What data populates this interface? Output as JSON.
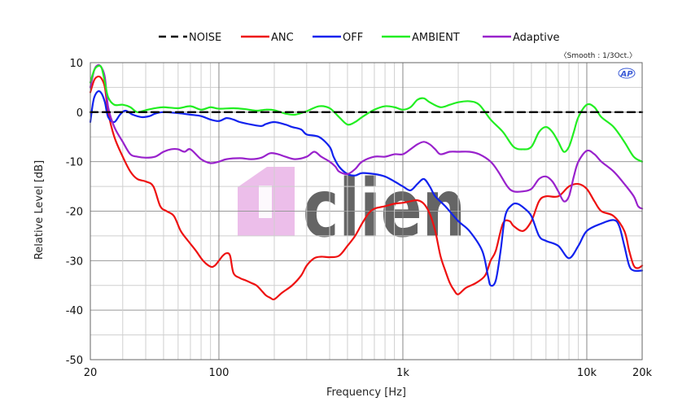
{
  "chart_data": {
    "type": "line",
    "title": "",
    "xlabel": "Frequency [Hz]",
    "ylabel": "Relative Level [dB]",
    "x_scale": "log",
    "xlim": [
      20,
      20000
    ],
    "ylim": [
      -50,
      10
    ],
    "x_ticks": [
      {
        "value": 20,
        "label": "20"
      },
      {
        "value": 100,
        "label": "100"
      },
      {
        "value": 1000,
        "label": "1k"
      },
      {
        "value": 10000,
        "label": "10k"
      },
      {
        "value": 20000,
        "label": "20k"
      }
    ],
    "y_ticks": [
      {
        "value": 10,
        "label": "10"
      },
      {
        "value": 0,
        "label": "0"
      },
      {
        "value": -10,
        "label": "-10"
      },
      {
        "value": -20,
        "label": "-20"
      },
      {
        "value": -30,
        "label": "-30"
      },
      {
        "value": -40,
        "label": "-40"
      },
      {
        "value": -50,
        "label": "-50"
      }
    ],
    "grid": true,
    "legend_position": "top-center",
    "annotation": "〈Smooth : 1/3Oct.〉",
    "logo_text": "AP",
    "watermark_text": "clien",
    "series": [
      {
        "name": "NOISE",
        "color": "#000000",
        "dashed": true,
        "points": [
          [
            20,
            0
          ],
          [
            20000,
            0
          ]
        ]
      },
      {
        "name": "ANC",
        "color": "#ee1111",
        "dashed": false,
        "points": [
          [
            20,
            4
          ],
          [
            21,
            6.5
          ],
          [
            22,
            7.2
          ],
          [
            23,
            6.8
          ],
          [
            24,
            5
          ],
          [
            25,
            0
          ],
          [
            27,
            -5
          ],
          [
            30,
            -9
          ],
          [
            33,
            -12
          ],
          [
            36,
            -13.5
          ],
          [
            40,
            -14
          ],
          [
            44,
            -15
          ],
          [
            48,
            -19
          ],
          [
            52,
            -20
          ],
          [
            57,
            -21
          ],
          [
            62,
            -24
          ],
          [
            68,
            -26
          ],
          [
            75,
            -28
          ],
          [
            82,
            -30
          ],
          [
            90,
            -31.2
          ],
          [
            95,
            -31
          ],
          [
            100,
            -30
          ],
          [
            105,
            -29
          ],
          [
            110,
            -28.5
          ],
          [
            115,
            -29
          ],
          [
            120,
            -32.5
          ],
          [
            130,
            -33.5
          ],
          [
            140,
            -34
          ],
          [
            150,
            -34.5
          ],
          [
            160,
            -35
          ],
          [
            170,
            -36
          ],
          [
            180,
            -37
          ],
          [
            190,
            -37.5
          ],
          [
            200,
            -37.8
          ],
          [
            220,
            -36.5
          ],
          [
            250,
            -35
          ],
          [
            280,
            -33
          ],
          [
            300,
            -31
          ],
          [
            330,
            -29.5
          ],
          [
            360,
            -29.2
          ],
          [
            400,
            -29.3
          ],
          [
            450,
            -29
          ],
          [
            500,
            -27
          ],
          [
            550,
            -25
          ],
          [
            600,
            -22.5
          ],
          [
            650,
            -20.5
          ],
          [
            700,
            -19.5
          ],
          [
            800,
            -19
          ],
          [
            900,
            -18.5
          ],
          [
            1000,
            -18.3
          ],
          [
            1100,
            -18
          ],
          [
            1200,
            -17.8
          ],
          [
            1300,
            -18.5
          ],
          [
            1400,
            -20.5
          ],
          [
            1500,
            -24
          ],
          [
            1600,
            -29
          ],
          [
            1700,
            -32
          ],
          [
            1800,
            -34.5
          ],
          [
            1900,
            -36
          ],
          [
            2000,
            -36.8
          ],
          [
            2200,
            -35.5
          ],
          [
            2500,
            -34.5
          ],
          [
            2800,
            -33
          ],
          [
            3000,
            -30
          ],
          [
            3200,
            -28
          ],
          [
            3500,
            -22.5
          ],
          [
            3800,
            -22
          ],
          [
            4000,
            -23
          ],
          [
            4500,
            -24
          ],
          [
            5000,
            -22
          ],
          [
            5500,
            -18
          ],
          [
            6000,
            -17
          ],
          [
            7000,
            -17
          ],
          [
            8000,
            -15
          ],
          [
            9000,
            -14.5
          ],
          [
            10000,
            -15.5
          ],
          [
            11000,
            -18
          ],
          [
            12000,
            -20
          ],
          [
            14000,
            -21
          ],
          [
            16000,
            -24
          ],
          [
            17000,
            -28
          ],
          [
            18000,
            -31
          ],
          [
            19000,
            -31.5
          ],
          [
            20000,
            -31
          ]
        ]
      },
      {
        "name": "OFF",
        "color": "#1122ee",
        "dashed": false,
        "points": [
          [
            20,
            -2
          ],
          [
            20.5,
            1
          ],
          [
            21,
            3
          ],
          [
            22,
            4.2
          ],
          [
            23,
            3.8
          ],
          [
            24,
            2
          ],
          [
            25,
            -1
          ],
          [
            27,
            -2
          ],
          [
            29,
            -0.5
          ],
          [
            31,
            0.3
          ],
          [
            34,
            -0.5
          ],
          [
            38,
            -1
          ],
          [
            42,
            -0.8
          ],
          [
            45,
            -0.3
          ],
          [
            50,
            0
          ],
          [
            60,
            -0.2
          ],
          [
            70,
            -0.5
          ],
          [
            80,
            -0.8
          ],
          [
            90,
            -1.5
          ],
          [
            100,
            -1.8
          ],
          [
            110,
            -1.2
          ],
          [
            120,
            -1.5
          ],
          [
            130,
            -2
          ],
          [
            150,
            -2.5
          ],
          [
            170,
            -2.8
          ],
          [
            180,
            -2.4
          ],
          [
            200,
            -2
          ],
          [
            230,
            -2.5
          ],
          [
            250,
            -3
          ],
          [
            280,
            -3.5
          ],
          [
            300,
            -4.5
          ],
          [
            350,
            -5
          ],
          [
            400,
            -7
          ],
          [
            420,
            -9
          ],
          [
            450,
            -11
          ],
          [
            500,
            -12.5
          ],
          [
            550,
            -12.8
          ],
          [
            600,
            -12.3
          ],
          [
            700,
            -12.5
          ],
          [
            800,
            -13
          ],
          [
            900,
            -14
          ],
          [
            1000,
            -15
          ],
          [
            1100,
            -15.8
          ],
          [
            1200,
            -14.5
          ],
          [
            1300,
            -13.5
          ],
          [
            1400,
            -15
          ],
          [
            1500,
            -17
          ],
          [
            1700,
            -19
          ],
          [
            2000,
            -22
          ],
          [
            2300,
            -24
          ],
          [
            2700,
            -28
          ],
          [
            2900,
            -33
          ],
          [
            3000,
            -35
          ],
          [
            3200,
            -34
          ],
          [
            3400,
            -28
          ],
          [
            3600,
            -21
          ],
          [
            3900,
            -18.8
          ],
          [
            4200,
            -18.5
          ],
          [
            4600,
            -19.5
          ],
          [
            5000,
            -21
          ],
          [
            5500,
            -25
          ],
          [
            6000,
            -26
          ],
          [
            7000,
            -27
          ],
          [
            8000,
            -29.5
          ],
          [
            9000,
            -27
          ],
          [
            10000,
            -24
          ],
          [
            12000,
            -22.5
          ],
          [
            14000,
            -21.8
          ],
          [
            15000,
            -23
          ],
          [
            16000,
            -27
          ],
          [
            17000,
            -31
          ],
          [
            18000,
            -32
          ],
          [
            20000,
            -32
          ]
        ]
      },
      {
        "name": "AMBIENT",
        "color": "#22ee22",
        "dashed": false,
        "points": [
          [
            20,
            6
          ],
          [
            21,
            8.5
          ],
          [
            22,
            9.3
          ],
          [
            23,
            9
          ],
          [
            24,
            6
          ],
          [
            25,
            3
          ],
          [
            27,
            1.5
          ],
          [
            30,
            1.5
          ],
          [
            33,
            1
          ],
          [
            36,
            0
          ],
          [
            40,
            0.4
          ],
          [
            45,
            0.8
          ],
          [
            50,
            1
          ],
          [
            60,
            0.8
          ],
          [
            70,
            1.2
          ],
          [
            80,
            0.5
          ],
          [
            90,
            1
          ],
          [
            100,
            0.7
          ],
          [
            120,
            0.8
          ],
          [
            140,
            0.6
          ],
          [
            160,
            0.3
          ],
          [
            180,
            0.5
          ],
          [
            200,
            0.4
          ],
          [
            230,
            -0.3
          ],
          [
            260,
            -0.5
          ],
          [
            300,
            0.2
          ],
          [
            350,
            1.2
          ],
          [
            400,
            0.8
          ],
          [
            450,
            -1
          ],
          [
            500,
            -2.5
          ],
          [
            550,
            -2
          ],
          [
            600,
            -1
          ],
          [
            700,
            0.5
          ],
          [
            800,
            1.2
          ],
          [
            900,
            1
          ],
          [
            1000,
            0.5
          ],
          [
            1100,
            1
          ],
          [
            1200,
            2.5
          ],
          [
            1300,
            2.8
          ],
          [
            1400,
            2
          ],
          [
            1600,
            1
          ],
          [
            1800,
            1.5
          ],
          [
            2000,
            2
          ],
          [
            2300,
            2.2
          ],
          [
            2600,
            1.5
          ],
          [
            3000,
            -1.5
          ],
          [
            3500,
            -4
          ],
          [
            4000,
            -7
          ],
          [
            4500,
            -7.5
          ],
          [
            5000,
            -7
          ],
          [
            5500,
            -4
          ],
          [
            6000,
            -3
          ],
          [
            6500,
            -4
          ],
          [
            7000,
            -6
          ],
          [
            7500,
            -8
          ],
          [
            8000,
            -7
          ],
          [
            8500,
            -4
          ],
          [
            9000,
            -1
          ],
          [
            10000,
            1.5
          ],
          [
            11000,
            1
          ],
          [
            12000,
            -1
          ],
          [
            14000,
            -3
          ],
          [
            16000,
            -6
          ],
          [
            18000,
            -9
          ],
          [
            20000,
            -10
          ]
        ]
      },
      {
        "name": "Adaptive",
        "color": "#9922cc",
        "dashed": false,
        "points": [
          [
            20,
            5
          ],
          [
            21,
            8.5
          ],
          [
            22,
            9.5
          ],
          [
            23,
            9
          ],
          [
            24,
            7
          ],
          [
            25,
            1
          ],
          [
            27,
            -3
          ],
          [
            30,
            -6
          ],
          [
            33,
            -8.5
          ],
          [
            36,
            -9
          ],
          [
            40,
            -9.2
          ],
          [
            45,
            -9
          ],
          [
            50,
            -8
          ],
          [
            55,
            -7.5
          ],
          [
            60,
            -7.5
          ],
          [
            65,
            -8
          ],
          [
            70,
            -7.5
          ],
          [
            80,
            -9.5
          ],
          [
            90,
            -10.3
          ],
          [
            100,
            -10
          ],
          [
            110,
            -9.5
          ],
          [
            130,
            -9.3
          ],
          [
            150,
            -9.5
          ],
          [
            170,
            -9.2
          ],
          [
            190,
            -8.3
          ],
          [
            210,
            -8.5
          ],
          [
            230,
            -9
          ],
          [
            260,
            -9.5
          ],
          [
            300,
            -9
          ],
          [
            330,
            -8
          ],
          [
            360,
            -9
          ],
          [
            400,
            -10
          ],
          [
            430,
            -11
          ],
          [
            450,
            -12
          ],
          [
            500,
            -12.5
          ],
          [
            550,
            -11.5
          ],
          [
            600,
            -10
          ],
          [
            700,
            -9
          ],
          [
            800,
            -9
          ],
          [
            900,
            -8.5
          ],
          [
            1000,
            -8.5
          ],
          [
            1100,
            -7.5
          ],
          [
            1200,
            -6.5
          ],
          [
            1300,
            -6
          ],
          [
            1400,
            -6.5
          ],
          [
            1500,
            -7.5
          ],
          [
            1600,
            -8.5
          ],
          [
            1800,
            -8
          ],
          [
            2000,
            -8
          ],
          [
            2300,
            -8
          ],
          [
            2600,
            -8.5
          ],
          [
            3000,
            -10
          ],
          [
            3300,
            -12
          ],
          [
            3700,
            -15
          ],
          [
            4000,
            -16
          ],
          [
            4500,
            -16
          ],
          [
            5000,
            -15.5
          ],
          [
            5500,
            -13.5
          ],
          [
            6000,
            -13
          ],
          [
            6500,
            -14
          ],
          [
            7000,
            -16
          ],
          [
            7500,
            -18
          ],
          [
            8000,
            -17
          ],
          [
            8500,
            -13
          ],
          [
            9000,
            -10
          ],
          [
            10000,
            -7.8
          ],
          [
            11000,
            -8.5
          ],
          [
            12000,
            -10
          ],
          [
            14000,
            -12
          ],
          [
            16000,
            -14.5
          ],
          [
            18000,
            -17
          ],
          [
            19000,
            -19
          ],
          [
            20000,
            -19.5
          ]
        ]
      }
    ]
  }
}
